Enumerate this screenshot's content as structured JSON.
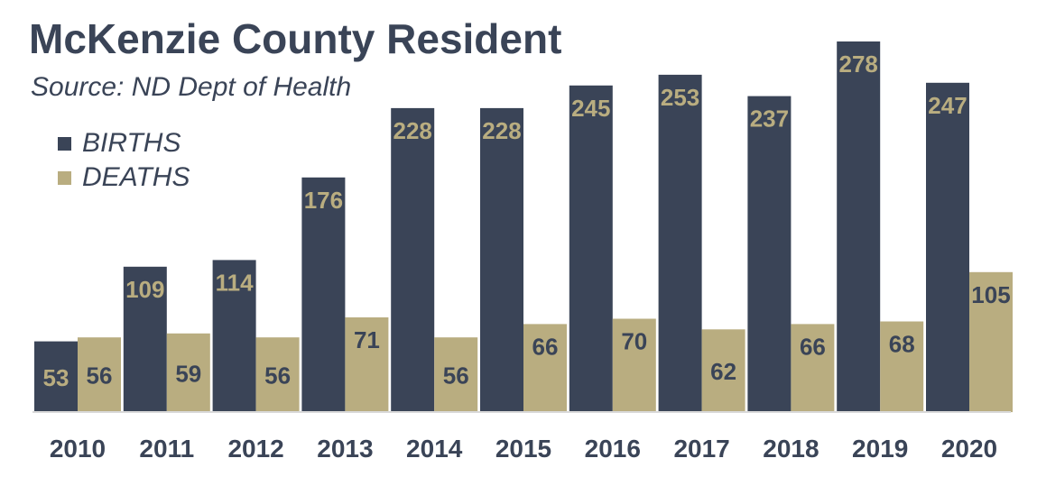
{
  "chart_data": {
    "type": "bar",
    "title": "McKenzie County Resident",
    "subtitle": "Source: ND Dept of Health",
    "categories": [
      "2010",
      "2011",
      "2012",
      "2013",
      "2014",
      "2015",
      "2016",
      "2017",
      "2018",
      "2019",
      "2020"
    ],
    "series": [
      {
        "name": "BIRTHS",
        "color": "#3a4457",
        "label_color": "#b9ad80",
        "values": [
          53,
          109,
          114,
          176,
          228,
          228,
          245,
          253,
          237,
          278,
          247
        ]
      },
      {
        "name": "DEATHS",
        "color": "#b9ad80",
        "label_color": "#3a4457",
        "values": [
          56,
          59,
          56,
          71,
          56,
          66,
          70,
          62,
          66,
          68,
          105
        ]
      }
    ],
    "xlabel": "",
    "ylabel": "",
    "ylim": [
      0,
      280
    ],
    "grid": false,
    "legend_position": "top-left"
  }
}
